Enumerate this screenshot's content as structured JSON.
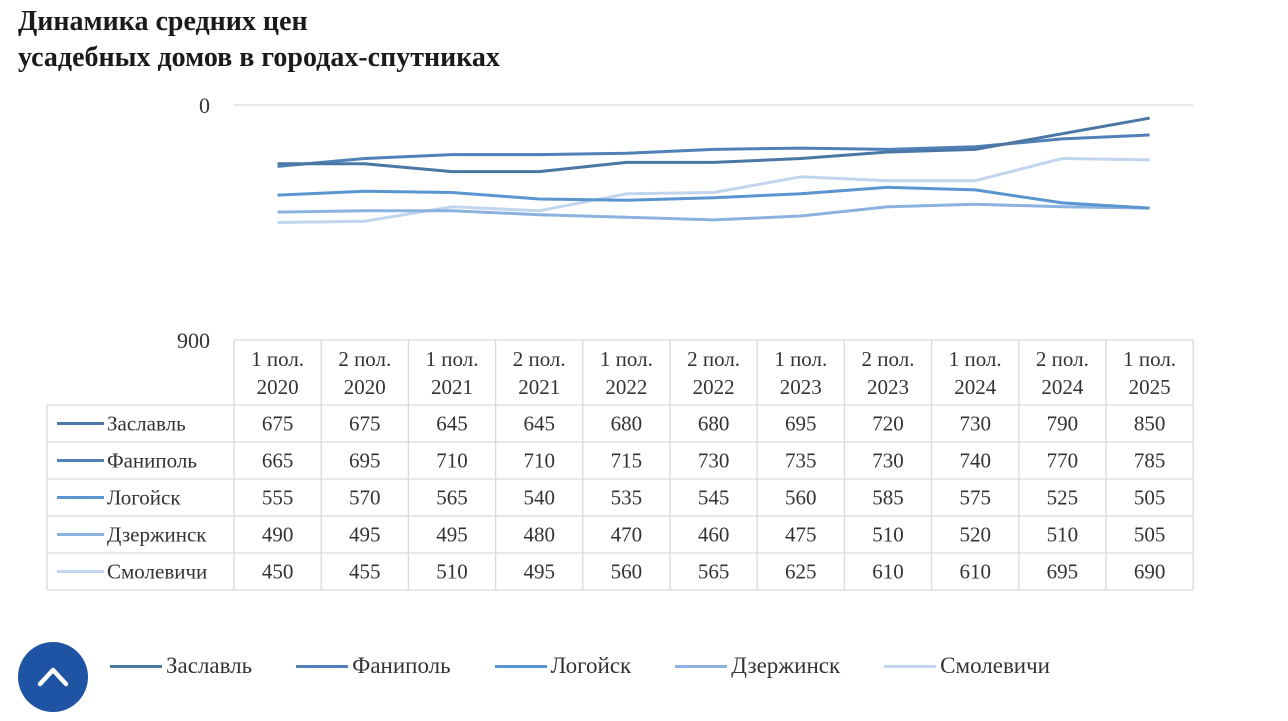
{
  "page": {
    "title_line1": "Динамика средних цен",
    "title_line2": "усадебных домов в городах-спутниках"
  },
  "chart_data": {
    "type": "line",
    "title": "Динамика средних цен усадебных домов в городах-спутниках",
    "xlabel": "",
    "ylabel": "",
    "ylim": [
      0,
      900
    ],
    "y_ticks": [
      "0",
      "900"
    ],
    "grid": true,
    "legend_position": "bottom",
    "categories": [
      [
        "1 пол.",
        "2020"
      ],
      [
        "2 пол.",
        "2020"
      ],
      [
        "1 пол.",
        "2021"
      ],
      [
        "2 пол.",
        "2021"
      ],
      [
        "1 пол.",
        "2022"
      ],
      [
        "2 пол.",
        "2022"
      ],
      [
        "1 пол.",
        "2023"
      ],
      [
        "2 пол.",
        "2023"
      ],
      [
        "1 пол.",
        "2024"
      ],
      [
        "2 пол.",
        "2024"
      ],
      [
        "1 пол.",
        "2025"
      ]
    ],
    "series": [
      {
        "name": "Заславль",
        "color": "#4a77a3",
        "values": [
          675,
          675,
          645,
          645,
          680,
          680,
          695,
          720,
          730,
          790,
          850
        ]
      },
      {
        "name": "Фаниполь",
        "color": "#4f80b8",
        "values": [
          665,
          695,
          710,
          710,
          715,
          730,
          735,
          730,
          740,
          770,
          785
        ]
      },
      {
        "name": "Логойск",
        "color": "#5b95cf",
        "values": [
          555,
          570,
          565,
          540,
          535,
          545,
          560,
          585,
          575,
          525,
          505
        ]
      },
      {
        "name": "Дзержинск",
        "color": "#8cb2df",
        "values": [
          490,
          495,
          495,
          480,
          470,
          460,
          475,
          510,
          520,
          510,
          505
        ]
      },
      {
        "name": "Смолевичи",
        "color": "#c2d5ef",
        "values": [
          450,
          455,
          510,
          495,
          560,
          565,
          625,
          610,
          610,
          695,
          690
        ]
      }
    ]
  },
  "scroll_top_button": {
    "icon": "chevron-up-icon",
    "color": "#1f54a5"
  }
}
